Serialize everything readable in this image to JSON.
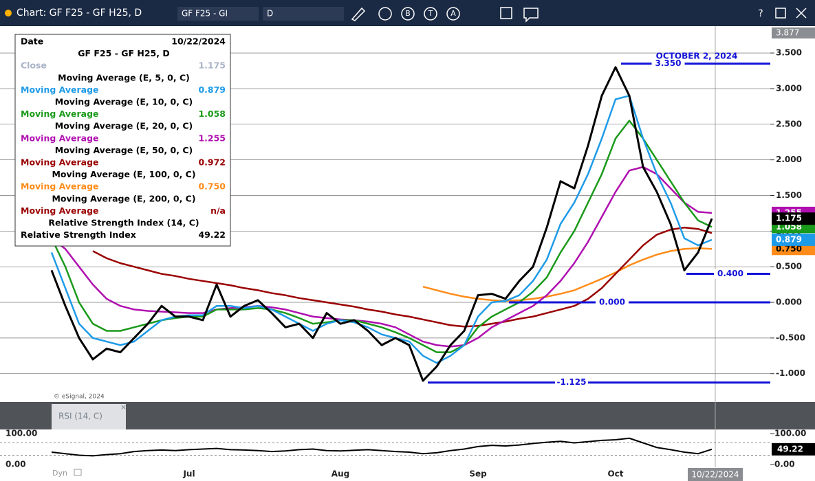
{
  "window": {
    "title": "Chart: GF F25 - GF H25, D",
    "symbol_input": "GF F25 - GI",
    "interval_input": "D",
    "tools": [
      "B",
      "T",
      "A"
    ],
    "help": "?"
  },
  "data_window": {
    "date_label": "Date",
    "date": "10/22/2024",
    "symbol": "GF F25 - GF H25, D",
    "rows": [
      {
        "label": "Close",
        "value": "1.175",
        "color": "#a9b3c6"
      },
      {
        "heading": "Moving Average (E, 5, 0, C)",
        "label": "Moving Average",
        "value": "0.879",
        "color": "#1e9be8"
      },
      {
        "heading": "Moving Average (E, 10, 0, C)",
        "label": "Moving Average",
        "value": "1.058",
        "color": "#1a9a1a"
      },
      {
        "heading": "Moving Average (E, 20, 0, C)",
        "label": "Moving Average",
        "value": "1.255",
        "color": "#b010b0"
      },
      {
        "heading": "Moving Average (E, 50, 0, C)",
        "label": "Moving Average",
        "value": "0.972",
        "color": "#9a0000"
      },
      {
        "heading": "Moving Average (E, 100, 0, C)",
        "label": "Moving Average",
        "value": "0.750",
        "color": "#ff8c1a"
      },
      {
        "heading": "Moving Average (E, 200, 0, C)",
        "label": "Moving Average",
        "value": "n/a",
        "color": "#9a0000"
      },
      {
        "heading": "Relative Strength Index (14, C)",
        "label": "Relative Strength Index",
        "value": "49.22",
        "color": "#000000"
      }
    ]
  },
  "watermark": "© eSignal, 2024",
  "pane_tab": "RSI (14, C)",
  "cursor_date": "10/22/2024",
  "dyn": "Dyn",
  "chart_data": [
    {
      "type": "line",
      "ylim": [
        -1.398,
        3.877
      ],
      "ylim_label": "3.877",
      "grid": true,
      "yticks": [
        {
          "value": -1,
          "label": "-1.000"
        },
        {
          "value": -0.5,
          "label": "-0.500"
        },
        {
          "value": 0,
          "label": "0.000"
        },
        {
          "value": 0.5,
          "label": "0.500"
        },
        {
          "value": 1,
          "label": "1.000"
        },
        {
          "value": 1.5,
          "label": "1.500"
        },
        {
          "value": 2,
          "label": "2.000"
        },
        {
          "value": 2.5,
          "label": "2.500"
        },
        {
          "value": 3,
          "label": "3.000"
        },
        {
          "value": 3.5,
          "label": "3.500"
        }
      ],
      "annotation": "OCTOBER 2, 2024",
      "levels": [
        {
          "value": 3.35,
          "label": "3.350"
        },
        {
          "value": 0.4,
          "label": "0.400"
        },
        {
          "value": 0,
          "label": "0.000"
        },
        {
          "value": -1.125,
          "label": "-1.125"
        }
      ],
      "series": [
        {
          "color": "#000000",
          "values": [
            0.45,
            -0.05,
            -0.5,
            -0.8,
            -0.65,
            -0.7,
            -0.5,
            -0.3,
            -0.05,
            -0.2,
            -0.2,
            -0.25,
            0.25,
            -0.2,
            -0.05,
            0.03,
            -0.15,
            -0.35,
            -0.3,
            -0.5,
            -0.15,
            -0.3,
            -0.25,
            -0.4,
            -0.6,
            -0.5,
            -0.6,
            -1.1,
            -0.9,
            -0.6,
            -0.4,
            0.1,
            0.12,
            0.05,
            0.3,
            0.5,
            1.05,
            1.7,
            1.6,
            2.2,
            2.9,
            3.3,
            2.9,
            1.9,
            1.55,
            1.1,
            0.45,
            0.7,
            1.175
          ]
        },
        {
          "color": "#1e9be8",
          "values": [
            0.7,
            0.2,
            -0.3,
            -0.5,
            -0.55,
            -0.6,
            -0.55,
            -0.4,
            -0.25,
            -0.2,
            -0.18,
            -0.18,
            -0.05,
            -0.05,
            -0.08,
            -0.05,
            -0.1,
            -0.2,
            -0.3,
            -0.4,
            -0.3,
            -0.25,
            -0.28,
            -0.35,
            -0.45,
            -0.5,
            -0.55,
            -0.75,
            -0.85,
            -0.75,
            -0.6,
            -0.2,
            0.0,
            0.02,
            0.1,
            0.3,
            0.6,
            1.1,
            1.4,
            1.8,
            2.3,
            2.85,
            2.9,
            2.3,
            1.8,
            1.4,
            0.9,
            0.8,
            0.879
          ]
        },
        {
          "color": "#1a9a1a",
          "values": [
            0.9,
            0.5,
            0.0,
            -0.3,
            -0.4,
            -0.4,
            -0.35,
            -0.3,
            -0.25,
            -0.22,
            -0.2,
            -0.2,
            -0.1,
            -0.1,
            -0.1,
            -0.08,
            -0.1,
            -0.15,
            -0.22,
            -0.3,
            -0.28,
            -0.25,
            -0.25,
            -0.3,
            -0.35,
            -0.42,
            -0.5,
            -0.6,
            -0.7,
            -0.7,
            -0.6,
            -0.35,
            -0.2,
            -0.1,
            0.0,
            0.15,
            0.35,
            0.7,
            1.0,
            1.4,
            1.8,
            2.3,
            2.55,
            2.3,
            2.0,
            1.7,
            1.4,
            1.15,
            1.058
          ]
        },
        {
          "color": "#b010b0",
          "values": [
            0.9,
            0.75,
            0.5,
            0.25,
            0.05,
            -0.05,
            -0.1,
            -0.12,
            -0.13,
            -0.14,
            -0.15,
            -0.15,
            -0.1,
            -0.08,
            -0.07,
            -0.05,
            -0.07,
            -0.1,
            -0.15,
            -0.2,
            -0.22,
            -0.24,
            -0.25,
            -0.27,
            -0.3,
            -0.35,
            -0.45,
            -0.55,
            -0.6,
            -0.62,
            -0.6,
            -0.5,
            -0.35,
            -0.25,
            -0.15,
            -0.05,
            0.1,
            0.3,
            0.55,
            0.85,
            1.2,
            1.55,
            1.85,
            1.9,
            1.8,
            1.6,
            1.4,
            1.27,
            1.255
          ]
        },
        {
          "color": "#9a0000",
          "values": [
            null,
            null,
            null,
            0.72,
            0.62,
            0.55,
            0.5,
            0.45,
            0.4,
            0.37,
            0.33,
            0.3,
            0.27,
            0.24,
            0.2,
            0.17,
            0.13,
            0.1,
            0.06,
            0.03,
            0.0,
            -0.03,
            -0.06,
            -0.1,
            -0.13,
            -0.17,
            -0.2,
            -0.24,
            -0.28,
            -0.32,
            -0.34,
            -0.33,
            -0.3,
            -0.27,
            -0.23,
            -0.2,
            -0.15,
            -0.1,
            -0.05,
            0.05,
            0.2,
            0.4,
            0.6,
            0.8,
            0.95,
            1.02,
            1.05,
            1.03,
            0.972
          ]
        },
        {
          "color": "#ff8c1a",
          "values": [
            null,
            null,
            null,
            null,
            null,
            null,
            null,
            null,
            null,
            null,
            null,
            null,
            null,
            null,
            null,
            null,
            null,
            null,
            null,
            null,
            null,
            null,
            null,
            null,
            null,
            null,
            null,
            0.22,
            0.17,
            0.12,
            0.08,
            0.05,
            0.03,
            0.02,
            0.03,
            0.05,
            0.08,
            0.12,
            0.17,
            0.25,
            0.33,
            0.42,
            0.52,
            0.6,
            0.67,
            0.72,
            0.75,
            0.76,
            0.75
          ]
        }
      ]
    },
    {
      "type": "line",
      "ylim": [
        0,
        100
      ],
      "yticks": [
        {
          "value": 100,
          "label": "100.00"
        },
        {
          "value": 0,
          "label": "0.00"
        }
      ],
      "levels": [
        70,
        30
      ],
      "categories": [
        null,
        null,
        null,
        null,
        null,
        null,
        null,
        null,
        null,
        null,
        "Jul",
        null,
        null,
        null,
        null,
        null,
        null,
        null,
        null,
        null,
        null,
        "Aug",
        null,
        null,
        null,
        null,
        null,
        null,
        null,
        null,
        null,
        "Sep",
        null,
        null,
        null,
        null,
        null,
        null,
        null,
        null,
        null,
        "Oct",
        null,
        null,
        null,
        null,
        null,
        null,
        null
      ],
      "series": [
        {
          "color": "#000000",
          "values": [
            40,
            35,
            30,
            28,
            32,
            35,
            42,
            45,
            47,
            45,
            48,
            50,
            52,
            48,
            47,
            45,
            42,
            44,
            48,
            50,
            45,
            44,
            46,
            48,
            45,
            42,
            40,
            35,
            38,
            45,
            50,
            58,
            62,
            60,
            63,
            68,
            72,
            75,
            70,
            74,
            78,
            80,
            85,
            70,
            55,
            48,
            40,
            35,
            49.22
          ]
        }
      ]
    }
  ]
}
